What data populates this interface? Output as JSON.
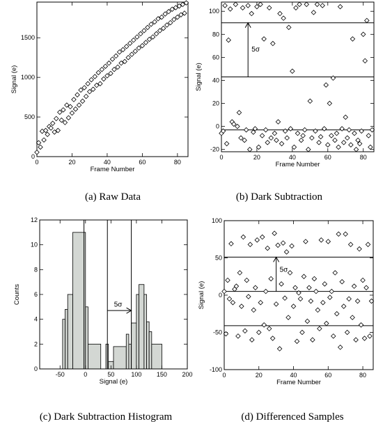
{
  "chart_data": [
    {
      "id": "a",
      "type": "scatter",
      "caption": "(a) Raw Data",
      "xlabel": "Frame Number",
      "ylabel": "Signal (e)",
      "xlim": [
        0,
        86
      ],
      "ylim": [
        0,
        1950
      ],
      "xticks": [
        0,
        20,
        40,
        60,
        80
      ],
      "yticks": [
        0,
        500,
        1000,
        1500
      ],
      "marker": "diamond",
      "grid": false,
      "series": [
        {
          "x": [
            0,
            1,
            2,
            3,
            4,
            5,
            6,
            7,
            8,
            9,
            10,
            11,
            12,
            13,
            14,
            15,
            16,
            17,
            18,
            19,
            20,
            21,
            22,
            23,
            24,
            25,
            26,
            27,
            28,
            29,
            30,
            31,
            32,
            33,
            34,
            35,
            36,
            37,
            38,
            39,
            40,
            41,
            42,
            43,
            44,
            45,
            46,
            47,
            48,
            49,
            50,
            51,
            52,
            53,
            54,
            55,
            56,
            57,
            58,
            59,
            60,
            61,
            62,
            63,
            64,
            65,
            66,
            67,
            68,
            69,
            70,
            71,
            72,
            73,
            74,
            75,
            76,
            77,
            78,
            79,
            80,
            81,
            82,
            83,
            84,
            85
          ],
          "y": [
            55,
            175,
            120,
            320,
            210,
            330,
            280,
            380,
            360,
            420,
            310,
            480,
            330,
            560,
            460,
            590,
            430,
            650,
            490,
            630,
            550,
            720,
            600,
            780,
            650,
            840,
            700,
            870,
            760,
            920,
            820,
            970,
            850,
            1010,
            900,
            1060,
            920,
            1100,
            980,
            1140,
            1020,
            1180,
            1050,
            1230,
            1100,
            1270,
            1130,
            1320,
            1180,
            1350,
            1200,
            1390,
            1250,
            1430,
            1290,
            1470,
            1330,
            1510,
            1370,
            1550,
            1400,
            1590,
            1440,
            1630,
            1480,
            1670,
            1510,
            1700,
            1550,
            1740,
            1590,
            1760,
            1620,
            1800,
            1660,
            1830,
            1690,
            1860,
            1730,
            1880,
            1760,
            1900,
            1790,
            1920,
            1810,
            1940
          ]
        }
      ]
    },
    {
      "id": "b",
      "type": "scatter",
      "caption": "(b) Dark Subtraction",
      "xlabel": "Frame Number",
      "ylabel": "Signal (e)",
      "xlim": [
        0,
        86
      ],
      "ylim": [
        -22,
        108
      ],
      "xticks": [
        0,
        20,
        40,
        60,
        80
      ],
      "yticks": [
        -20,
        0,
        20,
        40,
        60,
        80,
        100
      ],
      "marker": "diamond",
      "grid": false,
      "hlines": [
        90,
        43,
        -3
      ],
      "arrow": {
        "x": 15,
        "from": 43,
        "to": 90
      },
      "annotation": {
        "text": "5σ",
        "x": 17,
        "y": 67
      },
      "series": [
        {
          "x": [
            0,
            1,
            2,
            3,
            4,
            5,
            6,
            7,
            8,
            9,
            10,
            11,
            12,
            13,
            14,
            15,
            16,
            17,
            18,
            19,
            20,
            21,
            22,
            23,
            24,
            25,
            26,
            27,
            28,
            29,
            30,
            31,
            32,
            33,
            34,
            35,
            36,
            37,
            38,
            39,
            40,
            41,
            42,
            43,
            44,
            45,
            46,
            47,
            48,
            49,
            50,
            51,
            52,
            53,
            54,
            55,
            56,
            57,
            58,
            59,
            60,
            61,
            62,
            63,
            64,
            65,
            66,
            67,
            68,
            69,
            70,
            71,
            72,
            73,
            74,
            75,
            76,
            77,
            78,
            79,
            80,
            81,
            82,
            83,
            84,
            85
          ],
          "y": [
            -6,
            -4,
            105,
            -15,
            75,
            102,
            4,
            2,
            106,
            0,
            12,
            -10,
            103,
            -12,
            -3,
            105,
            -20,
            98,
            -5,
            -2,
            104,
            -18,
            106,
            -8,
            76,
            -3,
            -14,
            103,
            -10,
            72,
            -6,
            -12,
            4,
            98,
            -15,
            94,
            -4,
            -10,
            86,
            -2,
            48,
            -18,
            103,
            -6,
            106,
            -12,
            -8,
            -3,
            106,
            -20,
            22,
            -10,
            99,
            -4,
            106,
            -14,
            -9,
            105,
            -2,
            36,
            -16,
            20,
            -8,
            42,
            -12,
            -6,
            -18,
            104,
            -2,
            -14,
            8,
            -10,
            -3,
            -16,
            76,
            -6,
            -20,
            -12,
            -15,
            -4,
            80,
            57,
            92,
            -8,
            -18,
            -3
          ]
        }
      ]
    },
    {
      "id": "c",
      "type": "histogram",
      "caption": "(c) Dark Subtraction Histogram",
      "xlabel": "Signal (e)",
      "ylabel": "Counts",
      "xlim": [
        -90,
        200
      ],
      "ylim": [
        0,
        12
      ],
      "xticks": [
        -50,
        0,
        50,
        100,
        150,
        200
      ],
      "yticks": [
        0,
        2,
        4,
        6,
        8,
        10,
        12
      ],
      "grid": false,
      "vlines": [
        -3,
        43,
        90
      ],
      "arrow": {
        "y": 4.7,
        "from": 43,
        "to": 90
      },
      "annotation": {
        "text": "5σ",
        "x": 56,
        "y": 5.2
      },
      "bins": [
        {
          "x0": -45,
          "x1": -40,
          "count": 4
        },
        {
          "x0": -40,
          "x1": -35,
          "count": 4.8
        },
        {
          "x0": -35,
          "x1": -25,
          "count": 6
        },
        {
          "x0": -25,
          "x1": 0,
          "count": 11
        },
        {
          "x0": 0,
          "x1": 5,
          "count": 5
        },
        {
          "x0": 5,
          "x1": 30,
          "count": 2
        },
        {
          "x0": 40,
          "x1": 45,
          "count": 2
        },
        {
          "x0": 45,
          "x1": 55,
          "count": 0.6
        },
        {
          "x0": 55,
          "x1": 80,
          "count": 1.8
        },
        {
          "x0": 80,
          "x1": 85,
          "count": 2.8
        },
        {
          "x0": 85,
          "x1": 90,
          "count": 2
        },
        {
          "x0": 90,
          "x1": 100,
          "count": 3.7
        },
        {
          "x0": 100,
          "x1": 105,
          "count": 6
        },
        {
          "x0": 105,
          "x1": 115,
          "count": 6.8
        },
        {
          "x0": 115,
          "x1": 120,
          "count": 6
        },
        {
          "x0": 120,
          "x1": 125,
          "count": 3.8
        },
        {
          "x0": 125,
          "x1": 130,
          "count": 3
        },
        {
          "x0": 130,
          "x1": 150,
          "count": 2
        }
      ]
    },
    {
      "id": "d",
      "type": "scatter",
      "caption": "(d) Differenced Samples",
      "xlabel": "Frame Number",
      "ylabel": "Signal (e)",
      "xlim": [
        0,
        86
      ],
      "ylim": [
        -100,
        100
      ],
      "xticks": [
        0,
        20,
        40,
        60,
        80
      ],
      "yticks": [
        -100,
        -50,
        0,
        50,
        100
      ],
      "marker": "diamond",
      "grid": false,
      "hlines": [
        51,
        5,
        -41
      ],
      "arrow": {
        "x": 30,
        "from": 5,
        "to": 51
      },
      "annotation": {
        "text": "5σ",
        "x": 32,
        "y": 34
      },
      "series": [
        {
          "x": [
            0,
            1,
            2,
            3,
            4,
            5,
            6,
            7,
            8,
            9,
            10,
            11,
            12,
            13,
            14,
            15,
            16,
            17,
            18,
            19,
            20,
            21,
            22,
            23,
            24,
            25,
            26,
            27,
            28,
            29,
            30,
            31,
            32,
            33,
            34,
            35,
            36,
            37,
            38,
            39,
            40,
            41,
            42,
            43,
            44,
            45,
            46,
            47,
            48,
            49,
            50,
            51,
            52,
            53,
            54,
            55,
            56,
            57,
            58,
            59,
            60,
            61,
            62,
            63,
            64,
            65,
            66,
            67,
            68,
            69,
            70,
            71,
            72,
            73,
            74,
            75,
            76,
            77,
            78,
            79,
            80,
            81,
            82,
            83,
            84,
            85
          ],
          "y": [
            5,
            -52,
            20,
            -5,
            69,
            -10,
            8,
            12,
            -55,
            30,
            -15,
            78,
            -48,
            20,
            -2,
            68,
            -60,
            -20,
            10,
            74,
            -50,
            -10,
            78,
            -40,
            5,
            63,
            -45,
            22,
            -58,
            83,
            -12,
            67,
            -72,
            15,
            70,
            -4,
            58,
            -30,
            30,
            66,
            -15,
            10,
            -62,
            3,
            -5,
            -50,
            25,
            72,
            -35,
            10,
            -8,
            -60,
            22,
            5,
            -20,
            -45,
            74,
            -10,
            15,
            -38,
            72,
            -3,
            5,
            -55,
            30,
            -25,
            82,
            -70,
            18,
            -15,
            82,
            -50,
            -5,
            68,
            -30,
            12,
            -60,
            -8,
            62,
            -40,
            20,
            -58,
            10,
            68,
            -55,
            -8
          ]
        }
      ]
    }
  ]
}
